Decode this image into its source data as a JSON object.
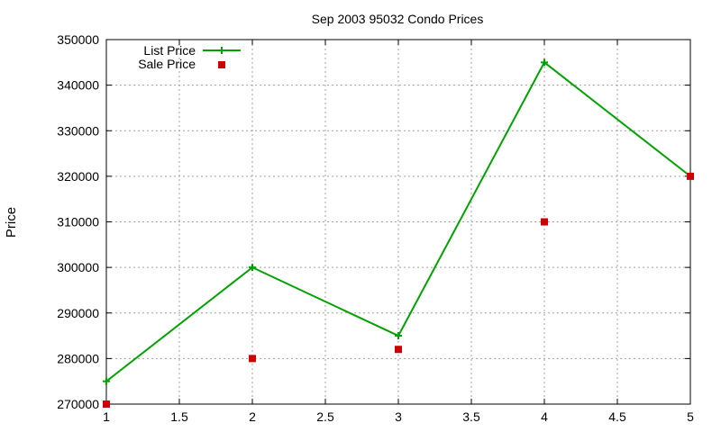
{
  "chart_data": {
    "type": "line",
    "title": "Sep 2003 95032 Condo Prices",
    "xlabel": "",
    "ylabel": "Price",
    "xlim": [
      1,
      5
    ],
    "ylim": [
      270000,
      350000
    ],
    "xticks": [
      "1",
      "1.5",
      "2",
      "2.5",
      "3",
      "3.5",
      "4",
      "4.5",
      "5"
    ],
    "yticks": [
      "270000",
      "280000",
      "290000",
      "300000",
      "310000",
      "320000",
      "330000",
      "340000",
      "350000"
    ],
    "grid": true,
    "legend_position": "top-left",
    "series": [
      {
        "name": "List Price",
        "style": "linespoints",
        "marker": "plus",
        "color": "#00a000",
        "x": [
          1,
          2,
          3,
          4,
          5
        ],
        "y": [
          275000,
          300000,
          285000,
          345000,
          320000
        ]
      },
      {
        "name": "Sale Price",
        "style": "points",
        "marker": "square",
        "color": "#cc0000",
        "x": [
          1,
          2,
          3,
          4,
          5
        ],
        "y": [
          270000,
          280000,
          282000,
          310000,
          320000
        ]
      }
    ]
  }
}
